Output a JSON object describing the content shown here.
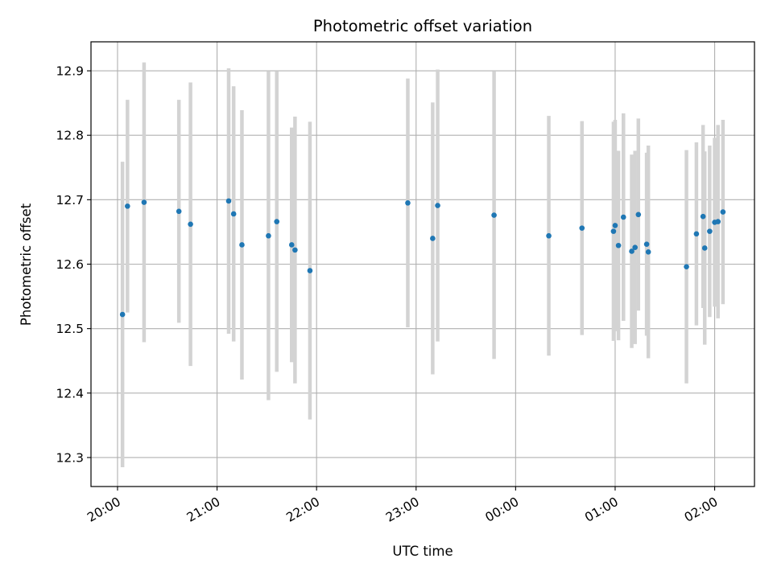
{
  "chart_data": {
    "type": "scatter",
    "title": "Photometric offset variation",
    "xlabel": "UTC time",
    "ylabel": "Photometric offset",
    "x_ticks": [
      "20:00",
      "21:00",
      "22:00",
      "23:00",
      "00:00",
      "01:00",
      "02:00"
    ],
    "x_tick_values": [
      "20:00",
      "21:00",
      "22:00",
      "23:00",
      "24:00",
      "25:00",
      "26:00"
    ],
    "xlim": [
      "19:44",
      "26:24"
    ],
    "y_ticks": [
      "12.3",
      "12.4",
      "12.5",
      "12.6",
      "12.7",
      "12.8",
      "12.9"
    ],
    "y_tick_values": [
      12.3,
      12.4,
      12.5,
      12.6,
      12.7,
      12.8,
      12.9
    ],
    "ylim": [
      12.255,
      12.945
    ],
    "grid": true,
    "point_color": "#1f77b4",
    "errorbar_color": "#d3d3d3",
    "series": [
      {
        "points": [
          {
            "x": "20:03",
            "y": 12.522,
            "err": 0.237
          },
          {
            "x": "20:06",
            "y": 12.69,
            "err": 0.165
          },
          {
            "x": "20:16",
            "y": 12.696,
            "err": 0.217
          },
          {
            "x": "20:37",
            "y": 12.682,
            "err": 0.173
          },
          {
            "x": "20:44",
            "y": 12.662,
            "err": 0.22
          },
          {
            "x": "21:07",
            "y": 12.698,
            "err": 0.206
          },
          {
            "x": "21:10",
            "y": 12.678,
            "err": 0.198
          },
          {
            "x": "21:15",
            "y": 12.63,
            "err": 0.209
          },
          {
            "x": "21:31",
            "y": 12.644,
            "err": 0.255
          },
          {
            "x": "21:36",
            "y": 12.666,
            "err": 0.233
          },
          {
            "x": "21:45",
            "y": 12.63,
            "err": 0.182
          },
          {
            "x": "21:47",
            "y": 12.622,
            "err": 0.207
          },
          {
            "x": "21:56",
            "y": 12.59,
            "err": 0.231
          },
          {
            "x": "22:55",
            "y": 12.695,
            "err": 0.193
          },
          {
            "x": "23:10",
            "y": 12.64,
            "err": 0.211
          },
          {
            "x": "23:13",
            "y": 12.691,
            "err": 0.211
          },
          {
            "x": "23:47",
            "y": 12.676,
            "err": 0.223
          },
          {
            "x": "24:20",
            "y": 12.644,
            "err": 0.186
          },
          {
            "x": "24:40",
            "y": 12.656,
            "err": 0.166
          },
          {
            "x": "24:59",
            "y": 12.651,
            "err": 0.17
          },
          {
            "x": "25:00",
            "y": 12.66,
            "err": 0.164
          },
          {
            "x": "25:02",
            "y": 12.629,
            "err": 0.147
          },
          {
            "x": "25:05",
            "y": 12.673,
            "err": 0.161
          },
          {
            "x": "25:10",
            "y": 12.62,
            "err": 0.15
          },
          {
            "x": "25:12",
            "y": 12.626,
            "err": 0.15
          },
          {
            "x": "25:14",
            "y": 12.677,
            "err": 0.149
          },
          {
            "x": "25:19",
            "y": 12.631,
            "err": 0.142
          },
          {
            "x": "25:20",
            "y": 12.619,
            "err": 0.165
          },
          {
            "x": "25:43",
            "y": 12.596,
            "err": 0.181
          },
          {
            "x": "25:49",
            "y": 12.647,
            "err": 0.142
          },
          {
            "x": "25:53",
            "y": 12.674,
            "err": 0.142
          },
          {
            "x": "25:54",
            "y": 12.625,
            "err": 0.15
          },
          {
            "x": "25:57",
            "y": 12.651,
            "err": 0.133
          },
          {
            "x": "26:00",
            "y": 12.665,
            "err": 0.131
          },
          {
            "x": "26:02",
            "y": 12.666,
            "err": 0.15
          },
          {
            "x": "26:05",
            "y": 12.681,
            "err": 0.143
          }
        ]
      }
    ]
  }
}
